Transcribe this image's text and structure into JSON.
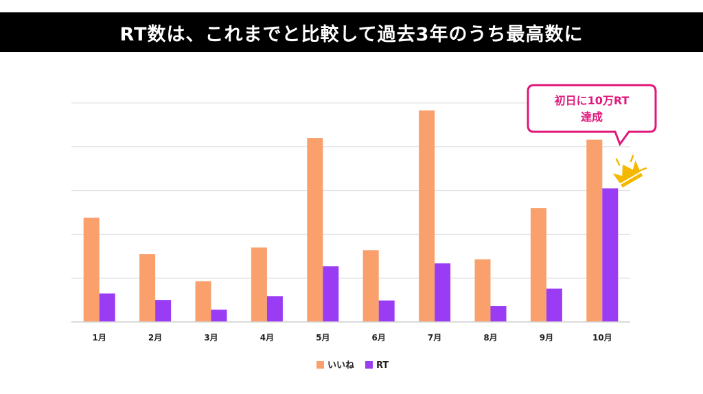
{
  "header": {
    "title": "RT数は、これまでと比較して過去3年のうち最高数に"
  },
  "callout": {
    "line1": "初日に10万RT",
    "line2": "達成"
  },
  "colors": {
    "likes": "#f9a06c",
    "rt": "#9b3cf5",
    "accent": "#e0177a",
    "crown": "#f5b800"
  },
  "icons": {
    "highlight": "crown-icon"
  },
  "chart_data": {
    "type": "bar",
    "categories": [
      "1月",
      "2月",
      "3月",
      "4月",
      "5月",
      "6月",
      "7月",
      "8月",
      "9月",
      "10月"
    ],
    "series": [
      {
        "name": "いいね",
        "values": [
          2.38,
          1.55,
          0.93,
          1.7,
          4.2,
          1.64,
          4.83,
          1.43,
          2.6,
          4.16
        ]
      },
      {
        "name": "RT",
        "values": [
          0.65,
          0.5,
          0.28,
          0.59,
          1.27,
          0.49,
          1.34,
          0.36,
          0.76,
          3.05
        ]
      }
    ],
    "ylim": [
      0,
      5
    ],
    "grid": true,
    "legend": "bottom-center",
    "highlight_index": 9
  }
}
